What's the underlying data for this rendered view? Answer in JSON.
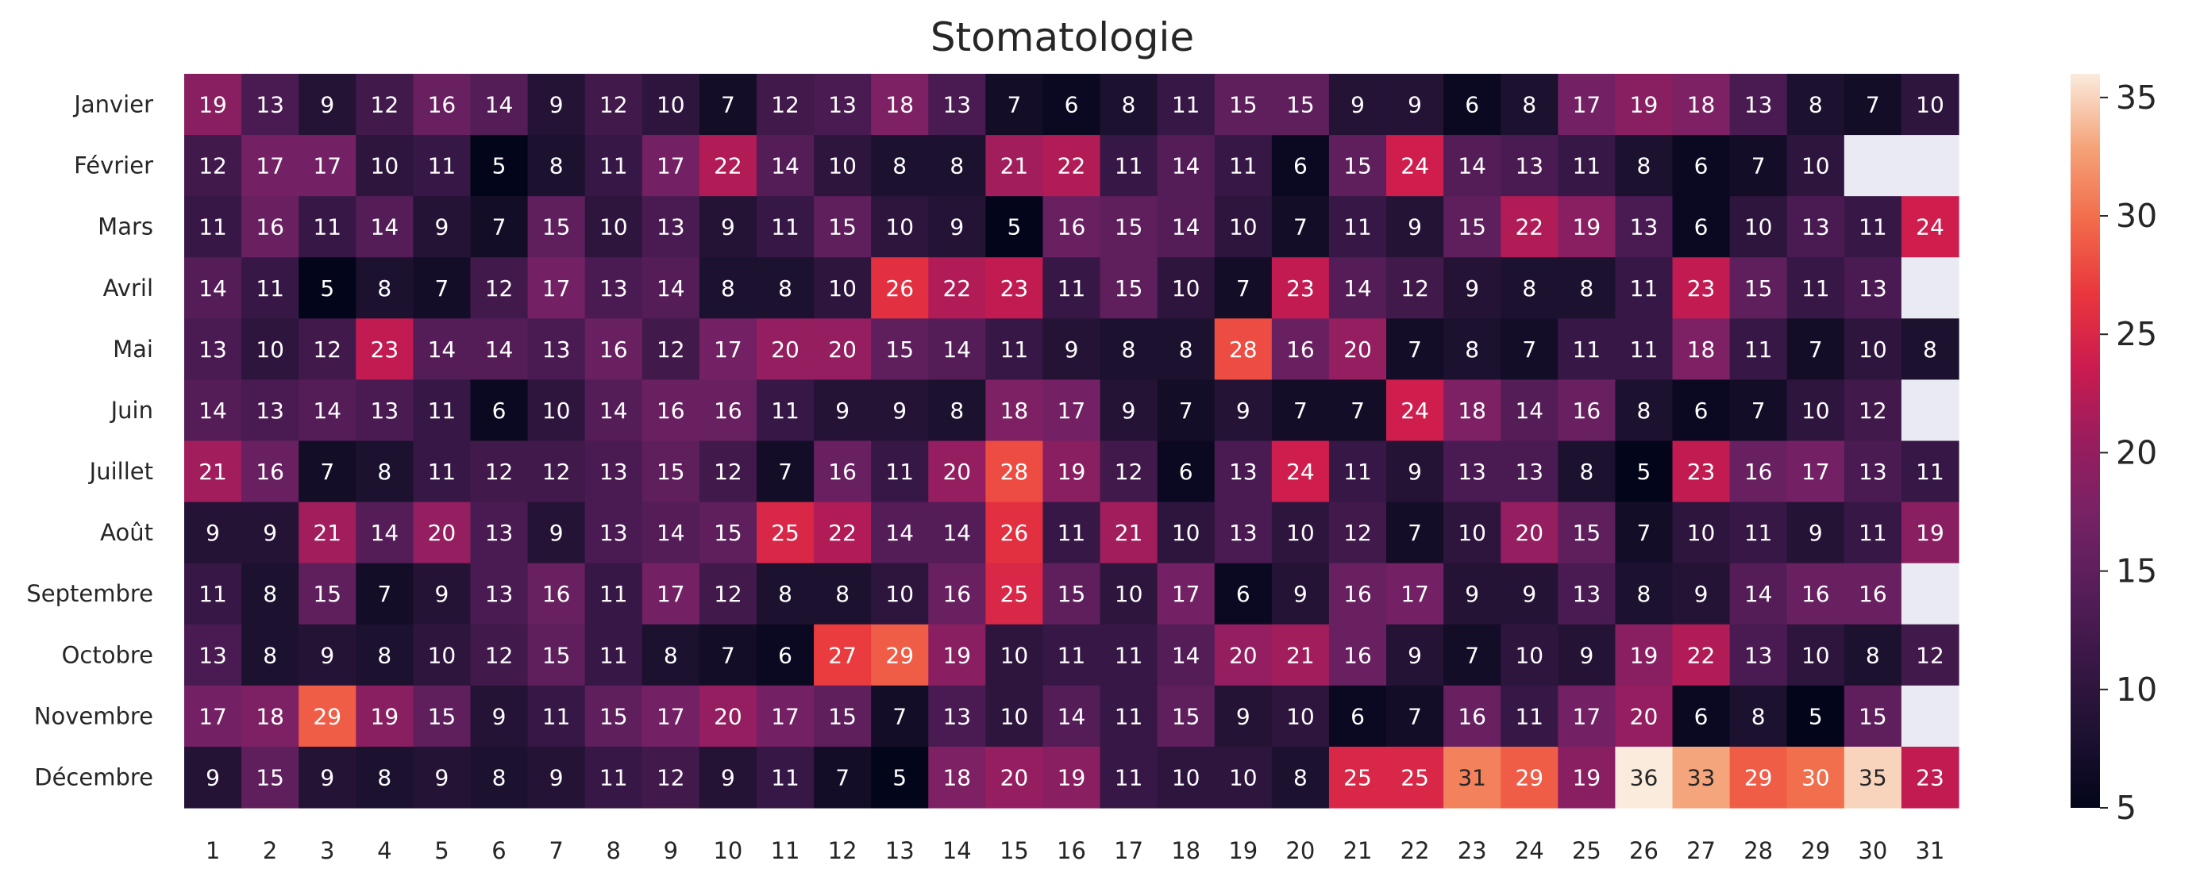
{
  "chart_data": {
    "type": "heatmap",
    "title": "Stomatologie",
    "rows": [
      "Janvier",
      "Février",
      "Mars",
      "Avril",
      "Mai",
      "Juin",
      "Juillet",
      "Août",
      "Septembre",
      "Octobre",
      "Novembre",
      "Décembre"
    ],
    "columns": [
      "1",
      "2",
      "3",
      "4",
      "5",
      "6",
      "7",
      "8",
      "9",
      "10",
      "11",
      "12",
      "13",
      "14",
      "15",
      "16",
      "17",
      "18",
      "19",
      "20",
      "21",
      "22",
      "23",
      "24",
      "25",
      "26",
      "27",
      "28",
      "29",
      "30",
      "31"
    ],
    "values": [
      [
        19,
        13,
        9,
        12,
        16,
        14,
        9,
        12,
        10,
        7,
        12,
        13,
        18,
        13,
        7,
        6,
        8,
        11,
        15,
        15,
        9,
        9,
        6,
        8,
        17,
        19,
        18,
        13,
        8,
        7,
        10
      ],
      [
        12,
        17,
        17,
        10,
        11,
        5,
        8,
        11,
        17,
        22,
        14,
        10,
        8,
        8,
        21,
        22,
        11,
        14,
        11,
        6,
        15,
        24,
        14,
        13,
        11,
        8,
        6,
        7,
        10,
        null,
        null
      ],
      [
        11,
        16,
        11,
        14,
        9,
        7,
        15,
        10,
        13,
        9,
        11,
        15,
        10,
        9,
        5,
        16,
        15,
        14,
        10,
        7,
        11,
        9,
        15,
        22,
        19,
        13,
        6,
        10,
        13,
        11,
        24
      ],
      [
        14,
        11,
        5,
        8,
        7,
        12,
        17,
        13,
        14,
        8,
        8,
        10,
        26,
        22,
        23,
        11,
        15,
        10,
        7,
        23,
        14,
        12,
        9,
        8,
        8,
        11,
        23,
        15,
        11,
        13,
        null
      ],
      [
        13,
        10,
        12,
        23,
        14,
        14,
        13,
        16,
        12,
        17,
        20,
        20,
        15,
        14,
        11,
        9,
        8,
        8,
        28,
        16,
        20,
        7,
        8,
        7,
        11,
        11,
        18,
        11,
        7,
        10,
        8
      ],
      [
        14,
        13,
        14,
        13,
        11,
        6,
        10,
        14,
        16,
        16,
        11,
        9,
        9,
        8,
        18,
        17,
        9,
        7,
        9,
        7,
        7,
        24,
        18,
        14,
        16,
        8,
        6,
        7,
        10,
        12,
        null
      ],
      [
        21,
        16,
        7,
        8,
        11,
        12,
        12,
        13,
        15,
        12,
        7,
        16,
        11,
        20,
        28,
        19,
        12,
        6,
        13,
        24,
        11,
        9,
        13,
        13,
        8,
        5,
        23,
        16,
        17,
        13,
        11
      ],
      [
        9,
        9,
        21,
        14,
        20,
        13,
        9,
        13,
        14,
        15,
        25,
        22,
        14,
        14,
        26,
        11,
        21,
        10,
        13,
        10,
        12,
        7,
        10,
        20,
        15,
        7,
        10,
        11,
        9,
        11,
        19
      ],
      [
        11,
        8,
        15,
        7,
        9,
        13,
        16,
        11,
        17,
        12,
        8,
        8,
        10,
        16,
        25,
        15,
        10,
        17,
        6,
        9,
        16,
        17,
        9,
        9,
        13,
        8,
        9,
        14,
        16,
        16,
        null
      ],
      [
        13,
        8,
        9,
        8,
        10,
        12,
        15,
        11,
        8,
        7,
        6,
        27,
        29,
        19,
        10,
        11,
        11,
        14,
        20,
        21,
        16,
        9,
        7,
        10,
        9,
        19,
        22,
        13,
        10,
        8,
        12
      ],
      [
        17,
        18,
        29,
        19,
        15,
        9,
        11,
        15,
        17,
        20,
        17,
        15,
        7,
        13,
        10,
        14,
        11,
        15,
        9,
        10,
        6,
        7,
        16,
        11,
        17,
        20,
        6,
        8,
        5,
        15,
        null
      ],
      [
        9,
        15,
        9,
        8,
        9,
        8,
        9,
        11,
        12,
        9,
        11,
        7,
        5,
        18,
        20,
        19,
        11,
        10,
        10,
        8,
        25,
        25,
        31,
        29,
        19,
        36,
        33,
        29,
        30,
        35,
        23
      ]
    ],
    "vmin": 5,
    "vmax": 36,
    "colorbar_ticks": [
      5,
      10,
      15,
      20,
      25,
      30,
      35
    ],
    "colormap": "rocket",
    "missing_color": "#eaeaf2",
    "grid": false
  }
}
